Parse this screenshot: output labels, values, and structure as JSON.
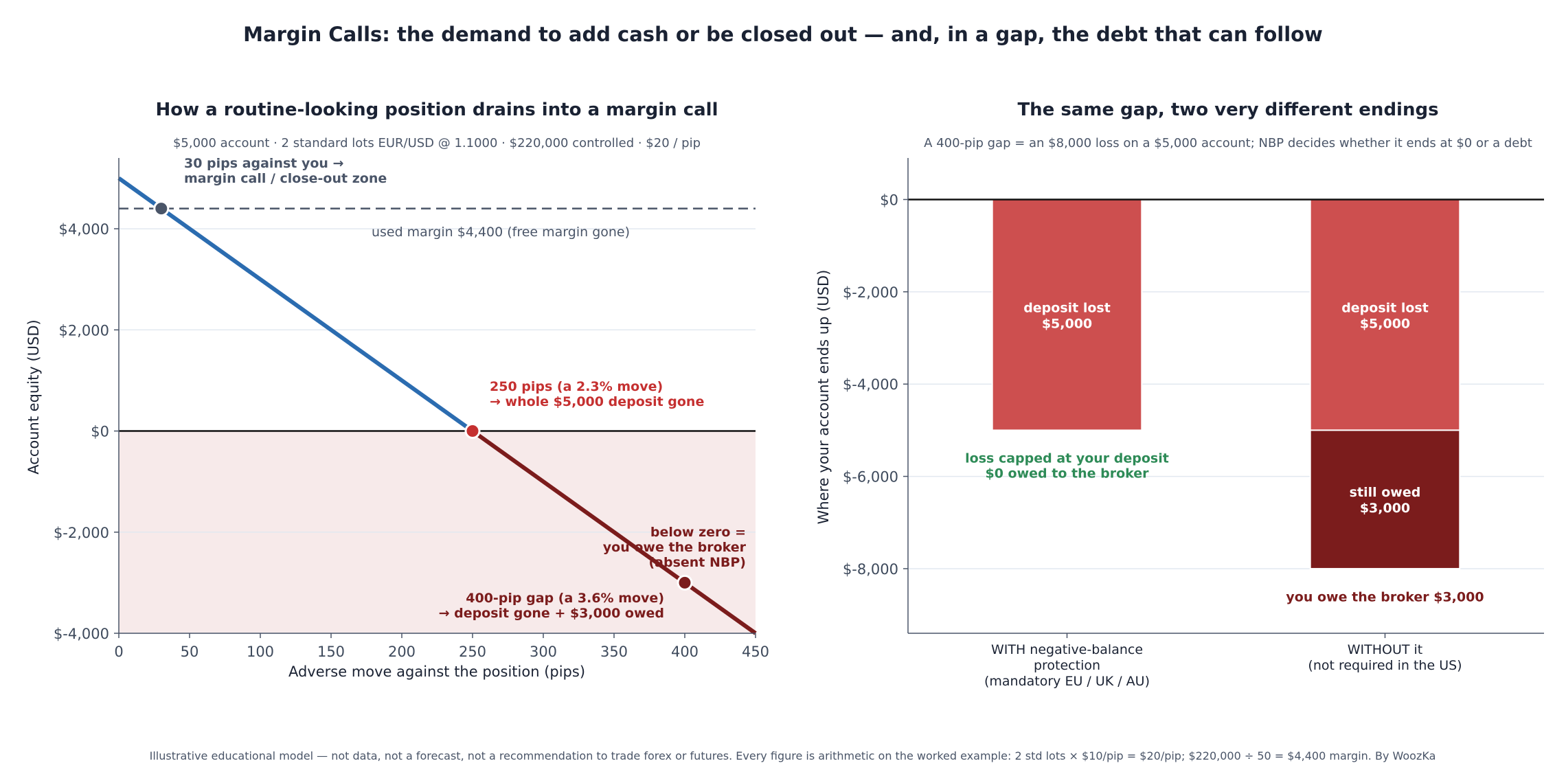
{
  "suptitle": "Margin Calls: the demand to add cash or be closed out — and, in a gap, the debt that can follow",
  "footer": "Illustrative educational model — not data, not a forecast, not a recommendation to trade forex or futures.   Every figure is arithmetic on the worked example:  2 std lots × $10/pip = $20/pip;  $220,000 ÷ 50 = $4,400 margin.   By WoozKa",
  "colors": {
    "equity_line": "#2b6cb0",
    "debt_line": "#7b1c1c",
    "negative_zone": "#f7eaea",
    "deposit_bar": "#cd4f4f",
    "owed_bar": "#7b1c1c",
    "green_note": "#2e8b57",
    "red_note": "#c53030",
    "dark_note": "#7b1c1c",
    "slate_note": "#4a5568"
  },
  "chart_data": [
    {
      "type": "line",
      "title": "How a routine-looking position drains into a margin call",
      "subtitle": "$5,000 account · 2 standard lots EUR/USD @ 1.1000 · $220,000 controlled · $20 / pip",
      "xlabel": "Adverse move against the position (pips)",
      "ylabel": "Account equity (USD)",
      "xlim": [
        0,
        450
      ],
      "ylim": [
        -4000,
        5400
      ],
      "xticks": [
        0,
        50,
        100,
        150,
        200,
        250,
        300,
        350,
        400,
        450
      ],
      "yticks": [
        -4000,
        -2000,
        0,
        2000,
        4000
      ],
      "ytick_labels": [
        "$-4,000",
        "$-2,000",
        "$0",
        "$2,000",
        "$4,000"
      ],
      "grid": true,
      "series": [
        {
          "name": "",
          "x": [
            0,
            250
          ],
          "y": [
            5000,
            0
          ],
          "color": "#2b6cb0"
        },
        {
          "name": "",
          "x": [
            250,
            450
          ],
          "y": [
            0,
            -4000
          ],
          "color": "#7b1c1c"
        }
      ],
      "reference_line": {
        "y": 4400,
        "style": "dashed",
        "label": "used margin $4,400 (free margin gone)"
      },
      "shaded_region": {
        "y_from": -4000,
        "y_to": 0
      },
      "markers": [
        {
          "x": 30,
          "y": 4400,
          "color": "#4a5568"
        },
        {
          "x": 250,
          "y": 0,
          "color": "#c53030"
        },
        {
          "x": 400,
          "y": -3000,
          "color": "#7b1c1c"
        }
      ],
      "annotations": {
        "margin_call": [
          "30 pips against you →",
          "margin call / close-out zone"
        ],
        "deposit_gone": [
          "250 pips (a 2.3% move)",
          "→ whole $5,000 deposit gone"
        ],
        "below_zero": [
          "below zero =",
          "you owe the broker",
          "(absent NBP)"
        ],
        "gap": [
          "400-pip gap (a 3.6% move)",
          "→ deposit gone + $3,000 owed"
        ]
      }
    },
    {
      "type": "bar",
      "title": "The same gap, two very different endings",
      "subtitle": "A 400-pip gap = an $8,000 loss on a $5,000 account; NBP decides whether it ends at $0 or a debt",
      "ylabel": "Where your account ends up (USD)",
      "ylim": [
        -9400,
        900
      ],
      "yticks": [
        -8000,
        -6000,
        -4000,
        -2000,
        0
      ],
      "ytick_labels": [
        "$-8,000",
        "$-6,000",
        "$-4,000",
        "$-2,000",
        "$0"
      ],
      "grid": true,
      "categories": [
        [
          "WITH negative-balance",
          "protection",
          "(mandatory EU / UK / AU)"
        ],
        [
          "WITHOUT it",
          "(not required in the US)"
        ]
      ],
      "bars": [
        {
          "category_index": 0,
          "bottom": -5000,
          "top": 0,
          "label": [
            "deposit lost",
            "$5,000"
          ],
          "color": "#cd4f4f"
        },
        {
          "category_index": 1,
          "bottom": -5000,
          "top": 0,
          "label": [
            "deposit lost",
            "$5,000"
          ],
          "color": "#cd4f4f"
        },
        {
          "category_index": 1,
          "bottom": -8000,
          "top": -5000,
          "label": [
            "still owed",
            "$3,000"
          ],
          "color": "#7b1c1c"
        }
      ],
      "notes": {
        "capped": [
          "loss capped at your deposit",
          "$0 owed to the broker"
        ],
        "owe": "you owe the broker $3,000"
      }
    }
  ]
}
